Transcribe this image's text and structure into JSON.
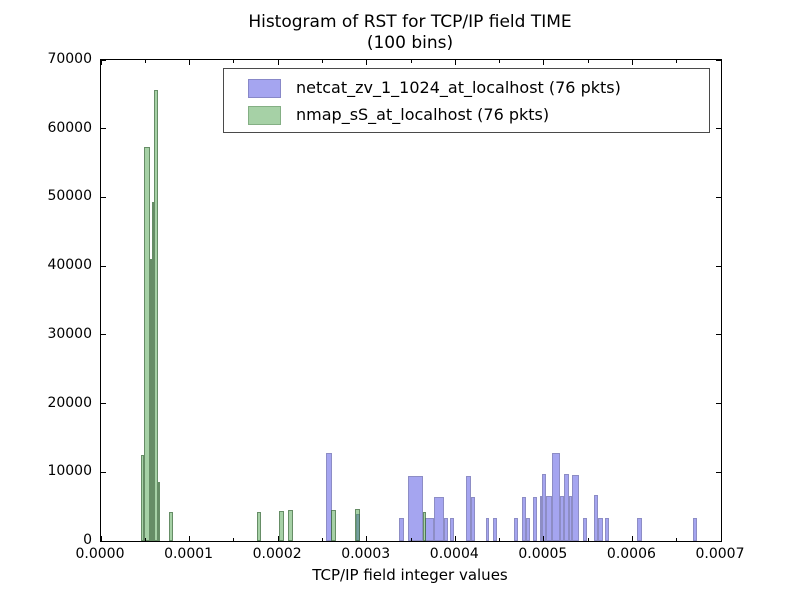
{
  "figure": {
    "title_line1": "Histogram of RST for TCP/IP field TIME",
    "title_line2": "(100 bins)",
    "xlabel": "TCP/IP field integer values"
  },
  "chart_data": {
    "type": "bar",
    "subtype": "overlaid-histogram",
    "bins": 100,
    "xlim": [
      0.0,
      0.0007
    ],
    "ylim": [
      0,
      70000
    ],
    "grid": false,
    "legend_position": "upper center inside axes",
    "x_tick_labels": [
      "0.0000",
      "0.0001",
      "0.0002",
      "0.0003",
      "0.0004",
      "0.0005",
      "0.0006",
      "0.0007"
    ],
    "x_tick_values": [
      0.0,
      0.0001,
      0.0002,
      0.0003,
      0.0004,
      0.0005,
      0.0006,
      0.0007
    ],
    "x_minor_tick_values": [
      5e-05,
      0.00015,
      0.00025,
      0.00035,
      0.00045,
      0.00055,
      0.00065
    ],
    "y_tick_values": [
      0,
      10000,
      20000,
      30000,
      40000,
      50000,
      60000,
      70000
    ],
    "series": [
      {
        "name": "netcat_zv_1_1024_at_localhost (76 pkts)",
        "swatch_color": "#a5a5f0",
        "fill": "#a5a5f0",
        "edge": "#8d8dc5",
        "bars": [
          [
            0.000254,
            0.0002604,
            12800
          ],
          [
            0.0002873,
            0.0002919,
            4000
          ],
          [
            0.0003368,
            0.0003418,
            3400
          ],
          [
            0.0003463,
            0.0003632,
            9500
          ],
          [
            0.0003658,
            0.0003763,
            3300
          ],
          [
            0.0003763,
            0.0003869,
            6400
          ],
          [
            0.0003869,
            0.0003921,
            3300
          ],
          [
            0.0003944,
            0.0003989,
            3300
          ],
          [
            0.0004121,
            0.0004177,
            9500
          ],
          [
            0.0004177,
            0.0004222,
            6400
          ],
          [
            0.0004347,
            0.0004384,
            3300
          ],
          [
            0.0004422,
            0.0004471,
            3400
          ],
          [
            0.0004666,
            0.0004711,
            3300
          ],
          [
            0.000475,
            0.0004798,
            6400
          ],
          [
            0.0004798,
            0.0004847,
            3300
          ],
          [
            0.0004873,
            0.0004922,
            6400
          ],
          [
            0.0004959,
            0.0004975,
            6500
          ],
          [
            0.0004975,
            0.0005023,
            9800
          ],
          [
            0.0005023,
            0.0005088,
            6500
          ],
          [
            0.0005088,
            0.0005185,
            12800
          ],
          [
            0.0005185,
            0.0005223,
            6500
          ],
          [
            0.0005223,
            0.0005286,
            9800
          ],
          [
            0.0005286,
            0.0005314,
            6500
          ],
          [
            0.0005314,
            0.00054,
            9600
          ],
          [
            0.0005438,
            0.0005487,
            3300
          ],
          [
            0.0005562,
            0.0005614,
            6700
          ],
          [
            0.0005614,
            0.0005664,
            3300
          ],
          [
            0.000569,
            0.0005738,
            3300
          ],
          [
            0.0006052,
            0.0006105,
            3400
          ],
          [
            0.000668,
            0.0006729,
            3400
          ]
        ]
      },
      {
        "name": "nmap_sS_at_localhost (76 pkts)",
        "swatch_color": "#a6d1a6",
        "fill": "rgba(57,153,57,0.45)",
        "edge": "rgba(60,95,60,0.6)",
        "bars": [
          [
            4.52e-05,
            4.89e-05,
            12500
          ],
          [
            4.89e-05,
            5.57e-05,
            57400
          ],
          [
            5.57e-05,
            5.79e-05,
            41000
          ],
          [
            5.79e-05,
            6.02e-05,
            49400
          ],
          [
            6.02e-05,
            6.44e-05,
            65600
          ],
          [
            6.44e-05,
            6.7e-05,
            8600
          ],
          [
            7.71e-05,
            8.09e-05,
            4300
          ],
          [
            0.0001761,
            0.0001806,
            4300
          ],
          [
            0.0002013,
            0.000207,
            4400
          ],
          [
            0.0002108,
            0.0002164,
            4500
          ],
          [
            0.00026,
            0.0002656,
            4500
          ],
          [
            0.0002868,
            0.0002928,
            4700
          ],
          [
            0.0003632,
            0.0003666,
            4300
          ]
        ]
      }
    ]
  },
  "colors": {
    "background": "#ffffff",
    "axes_edge": "#000000",
    "blue_fill": "#a5a5f0",
    "green_fill": "#a6d1a6",
    "overlap": "#74909e",
    "legend_border": "#4a4a4a"
  }
}
